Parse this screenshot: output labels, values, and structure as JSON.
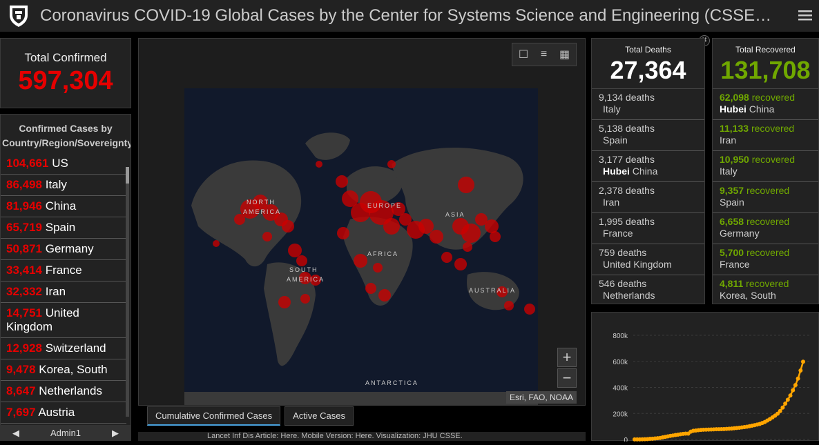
{
  "header": {
    "title": "Coronavirus COVID-19 Global Cases by the Center for Systems Science and Engineering (CSSE)…"
  },
  "total_confirmed": {
    "label": "Total Confirmed",
    "value": "597,304",
    "color": "#e60000"
  },
  "confirmed_list": {
    "heading": "Confirmed Cases by Country/Region/Sovereignty",
    "rows": [
      {
        "count": "104,661",
        "name": "US"
      },
      {
        "count": "86,498",
        "name": "Italy"
      },
      {
        "count": "81,946",
        "name": "China"
      },
      {
        "count": "65,719",
        "name": "Spain"
      },
      {
        "count": "50,871",
        "name": "Germany"
      },
      {
        "count": "33,414",
        "name": "France"
      },
      {
        "count": "32,332",
        "name": "Iran"
      },
      {
        "count": "14,751",
        "name": "United Kingdom"
      },
      {
        "count": "12,928",
        "name": "Switzerland"
      },
      {
        "count": "9,478",
        "name": "Korea, South"
      },
      {
        "count": "8,647",
        "name": "Netherlands"
      },
      {
        "count": "7,697",
        "name": "Austria"
      }
    ]
  },
  "footer": {
    "label": "Admin1"
  },
  "map": {
    "labels": [
      "NORTH",
      "AMERICA",
      "EUROPE",
      "ASIA",
      "AFRICA",
      "SOUTH",
      "AMERICA",
      "AUSTRALIA",
      "ANTARCTICA"
    ],
    "attribution": "Esri, FAO, NOAA",
    "tabs": [
      "Cumulative Confirmed Cases",
      "Active Cases"
    ]
  },
  "bottom_strip": "Lancet Inf Dis Article: Here. Mobile Version: Here. Visualization: JHU CSSE.",
  "deaths": {
    "label": "Total Deaths",
    "value": "27,364",
    "rows": [
      {
        "count": "9,134 deaths",
        "place": "Italy"
      },
      {
        "count": "5,138 deaths",
        "place": "Spain"
      },
      {
        "count": "3,177 deaths",
        "place_bold": "Hubei",
        "place": "China"
      },
      {
        "count": "2,378 deaths",
        "place": "Iran"
      },
      {
        "count": "1,995 deaths",
        "place": "France"
      },
      {
        "count": "759 deaths",
        "place": "United Kingdom"
      },
      {
        "count": "546 deaths",
        "place": "Netherlands"
      }
    ]
  },
  "recovered": {
    "label": "Total Recovered",
    "value": "131,708",
    "color": "#70a800",
    "rows": [
      {
        "count": "62,098",
        "word": "recovered",
        "place_bold": "Hubei",
        "place": "China"
      },
      {
        "count": "11,133",
        "word": "recovered",
        "place": "Iran"
      },
      {
        "count": "10,950",
        "word": "recovered",
        "place": "Italy"
      },
      {
        "count": "9,357",
        "word": "recovered",
        "place": "Spain"
      },
      {
        "count": "6,658",
        "word": "recovered",
        "place": "Germany"
      },
      {
        "count": "5,700",
        "word": "recovered",
        "place": "France"
      },
      {
        "count": "4,811",
        "word": "recovered",
        "place": "Korea, South"
      }
    ]
  },
  "chart_data": {
    "type": "line",
    "title": "",
    "xlabel": "",
    "ylabel": "",
    "yticks": [
      "0",
      "200k",
      "400k",
      "600k",
      "800k"
    ],
    "ylim": [
      0,
      800000
    ],
    "color": "#ffa500",
    "values": [
      555,
      654,
      941,
      1434,
      2118,
      2927,
      5578,
      6166,
      8234,
      9927,
      12038,
      16787,
      19881,
      23892,
      27635,
      30794,
      34391,
      37120,
      40150,
      42762,
      44802,
      45221,
      60368,
      66885,
      69030,
      71224,
      73258,
      75136,
      75639,
      76197,
      76823,
      77804,
      78599,
      78985,
      79570,
      80415,
      81397,
      82756,
      84124,
      86013,
      88371,
      90309,
      92844,
      95124,
      98015,
      102050,
      106099,
      109991,
      114381,
      118948,
      126214,
      134576,
      145483,
      156653,
      169593,
      182490,
      198238,
      218822,
      244933,
      275597,
      305036,
      337489,
      378287,
      418041,
      467653,
      529591,
      597304
    ]
  }
}
